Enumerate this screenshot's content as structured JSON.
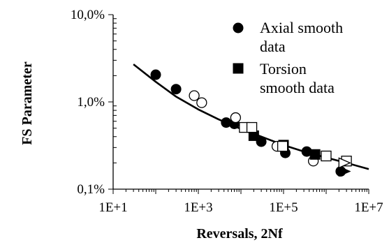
{
  "chart_data": {
    "type": "scatter",
    "title": "",
    "xlabel": "Reversals, 2Nf",
    "ylabel": "FS Parameter",
    "x_scale": "log",
    "y_scale": "log",
    "xlim": [
      10,
      10000000
    ],
    "ylim": [
      0.001,
      0.1
    ],
    "x_ticks": [
      {
        "value": 10,
        "label": "1E+1"
      },
      {
        "value": 1000,
        "label": "1E+3"
      },
      {
        "value": 100000,
        "label": "1E+5"
      },
      {
        "value": 10000000,
        "label": "1E+7"
      }
    ],
    "y_ticks": [
      {
        "value": 0.001,
        "label": "0,1%"
      },
      {
        "value": 0.01,
        "label": "1,0%"
      },
      {
        "value": 0.1,
        "label": "10,0%"
      }
    ],
    "grid": false,
    "legend_position": "top-right",
    "series": [
      {
        "name": "Axial smooth data",
        "marker": "filled-circle",
        "points": [
          [
            100,
            0.0205
          ],
          [
            300,
            0.014
          ],
          [
            4500,
            0.0058
          ],
          [
            7000,
            0.0056
          ],
          [
            30000,
            0.0035
          ],
          [
            110000,
            0.0026
          ],
          [
            350000,
            0.0027
          ],
          [
            2200000,
            0.0016
          ]
        ]
      },
      {
        "name": "",
        "marker": "open-circle",
        "points": [
          [
            800,
            0.0118
          ],
          [
            1200,
            0.0098
          ],
          [
            7500,
            0.0066
          ],
          [
            70000,
            0.0031
          ],
          [
            500000,
            0.0021
          ]
        ]
      },
      {
        "name": "Torsion smooth data",
        "marker": "filled-square",
        "points": [
          [
            20000,
            0.0041
          ],
          [
            100000,
            0.0032
          ],
          [
            550000,
            0.0025
          ]
        ]
      },
      {
        "name": "",
        "marker": "open-square",
        "points": [
          [
            12000,
            0.0051
          ],
          [
            18000,
            0.0051
          ],
          [
            95000,
            0.0031
          ],
          [
            1000000,
            0.0024
          ],
          [
            3000000,
            0.0021
          ]
        ]
      },
      {
        "name": "",
        "marker": "filled-arrow-right",
        "points": [
          [
            2600000,
            0.0016
          ]
        ]
      },
      {
        "name": "",
        "marker": "open-arrow-right",
        "points": [
          [
            2600000,
            0.002
          ]
        ]
      }
    ],
    "fit_curve": {
      "points": [
        [
          30,
          0.027
        ],
        [
          100,
          0.017
        ],
        [
          300,
          0.0115
        ],
        [
          1000,
          0.0082
        ],
        [
          3000,
          0.0063
        ],
        [
          10000,
          0.0049
        ],
        [
          30000,
          0.004
        ],
        [
          100000,
          0.0032
        ],
        [
          300000,
          0.0027
        ],
        [
          1000000,
          0.0023
        ],
        [
          3000000,
          0.002
        ],
        [
          10000000,
          0.0017
        ]
      ]
    },
    "legend": [
      {
        "label_lines": [
          "Axial smooth",
          "data"
        ],
        "marker": "filled-circle"
      },
      {
        "label_lines": [
          "Torsion",
          "smooth data"
        ],
        "marker": "filled-square"
      }
    ]
  }
}
